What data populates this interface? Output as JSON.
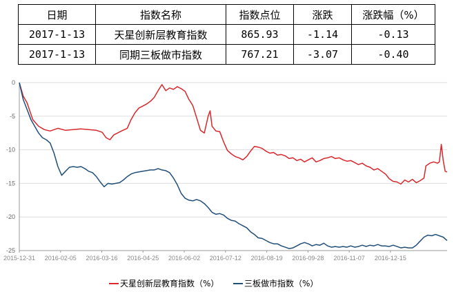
{
  "table": {
    "headers": [
      "日期",
      "指数名称",
      "指数点位",
      "涨跌",
      "涨跌幅（%）"
    ],
    "rows": [
      [
        "2017-1-13",
        "天星创新层教育指数",
        "865.93",
        "-1.14",
        "-0.13"
      ],
      [
        "2017-1-13",
        "同期三板做市指数",
        "767.21",
        "-3.07",
        "-0.40"
      ]
    ]
  },
  "chart_data": {
    "type": "line",
    "xlabel": "",
    "ylabel": "",
    "ylim": [
      -25,
      0
    ],
    "yticks": [
      0,
      -5,
      -10,
      -15,
      -20,
      -25
    ],
    "xticks": [
      "2015-12-31",
      "2016-02-05",
      "2016-03-16",
      "2016-04-25",
      "2016-06-02",
      "2016-07-12",
      "2016-08-19",
      "2016-09-28",
      "2016-11-07",
      "2016-12-15"
    ],
    "grid": "horizontal",
    "legend": "bottom",
    "colors": {
      "red": "#d9262b",
      "blue": "#1f4e79",
      "grid": "#dddddd",
      "axis": "#999999"
    },
    "series": [
      {
        "name": "天星创新层教育指数（%）",
        "color": "#d9262b",
        "points": [
          [
            0,
            0
          ],
          [
            2,
            -2
          ],
          [
            4,
            -3
          ],
          [
            7,
            -5.5
          ],
          [
            10,
            -6.5
          ],
          [
            13,
            -7
          ],
          [
            16,
            -7.2
          ],
          [
            20,
            -6.8
          ],
          [
            24,
            -7.1
          ],
          [
            28,
            -7
          ],
          [
            32,
            -6.9
          ],
          [
            36,
            -7
          ],
          [
            40,
            -7.1
          ],
          [
            43,
            -7.4
          ],
          [
            45,
            -8.2
          ],
          [
            47,
            -8.5
          ],
          [
            49,
            -7.8
          ],
          [
            51,
            -7.5
          ],
          [
            53,
            -7.2
          ],
          [
            56,
            -6.8
          ],
          [
            58,
            -5.5
          ],
          [
            60,
            -4.5
          ],
          [
            62,
            -3.8
          ],
          [
            64,
            -3.5
          ],
          [
            66,
            -3.2
          ],
          [
            68,
            -2.8
          ],
          [
            70,
            -2.2
          ],
          [
            72,
            -1.2
          ],
          [
            74,
            -0.3
          ],
          [
            76,
            -1.2
          ],
          [
            78,
            -0.8
          ],
          [
            80,
            -1.0
          ],
          [
            82,
            -0.6
          ],
          [
            84,
            -0.9
          ],
          [
            86,
            -1.3
          ],
          [
            88,
            -2.5
          ],
          [
            90,
            -3.4
          ],
          [
            92,
            -5.2
          ],
          [
            94,
            -7.1
          ],
          [
            96,
            -7.5
          ],
          [
            98,
            -5.0
          ],
          [
            99,
            -4.2
          ],
          [
            100,
            -6.5
          ],
          [
            102,
            -7.2
          ],
          [
            104,
            -7.3
          ],
          [
            106,
            -8.8
          ],
          [
            108,
            -10.1
          ],
          [
            110,
            -10.6
          ],
          [
            112,
            -11.0
          ],
          [
            114,
            -11.2
          ],
          [
            116,
            -11.5
          ],
          [
            118,
            -11.0
          ],
          [
            120,
            -10.2
          ],
          [
            122,
            -9.5
          ],
          [
            124,
            -9.6
          ],
          [
            126,
            -9.8
          ],
          [
            128,
            -10.2
          ],
          [
            130,
            -10.5
          ],
          [
            132,
            -10.4
          ],
          [
            134,
            -10.8
          ],
          [
            136,
            -10.7
          ],
          [
            138,
            -10.9
          ],
          [
            140,
            -11.3
          ],
          [
            142,
            -11.2
          ],
          [
            144,
            -11.6
          ],
          [
            146,
            -11.4
          ],
          [
            148,
            -11.8
          ],
          [
            150,
            -11.5
          ],
          [
            152,
            -11.2
          ],
          [
            154,
            -11.8
          ],
          [
            156,
            -11.6
          ],
          [
            158,
            -11.3
          ],
          [
            160,
            -11.2
          ],
          [
            162,
            -11.0
          ],
          [
            164,
            -11.3
          ],
          [
            166,
            -11.2
          ],
          [
            168,
            -11.5
          ],
          [
            170,
            -11.7
          ],
          [
            172,
            -11.6
          ],
          [
            174,
            -11.9
          ],
          [
            176,
            -12.2
          ],
          [
            178,
            -12.0
          ],
          [
            180,
            -12.4
          ],
          [
            182,
            -12.6
          ],
          [
            184,
            -13.0
          ],
          [
            186,
            -12.8
          ],
          [
            188,
            -13.2
          ],
          [
            190,
            -13.6
          ],
          [
            192,
            -14.3
          ],
          [
            194,
            -14.7
          ],
          [
            196,
            -14.8
          ],
          [
            198,
            -15.1
          ],
          [
            200,
            -14.5
          ],
          [
            202,
            -14.8
          ],
          [
            204,
            -14.4
          ],
          [
            206,
            -14.9
          ],
          [
            208,
            -14.6
          ],
          [
            210,
            -14.2
          ],
          [
            211,
            -12.4
          ],
          [
            213,
            -12.0
          ],
          [
            215,
            -11.8
          ],
          [
            217,
            -12.0
          ],
          [
            218,
            -11.8
          ],
          [
            219,
            -9.2
          ],
          [
            220,
            -11.6
          ],
          [
            221,
            -13.2
          ],
          [
            222,
            -13.3
          ]
        ]
      },
      {
        "name": "三板做市指数（%）",
        "color": "#1f4e79",
        "points": [
          [
            0,
            0
          ],
          [
            2,
            -2.5
          ],
          [
            4,
            -4
          ],
          [
            6,
            -5.5
          ],
          [
            8,
            -6.5
          ],
          [
            10,
            -7.5
          ],
          [
            12,
            -8.2
          ],
          [
            14,
            -8.5
          ],
          [
            16,
            -9
          ],
          [
            18,
            -10.5
          ],
          [
            20,
            -12.5
          ],
          [
            22,
            -13.8
          ],
          [
            24,
            -13.2
          ],
          [
            26,
            -12.6
          ],
          [
            28,
            -12.5
          ],
          [
            30,
            -12.6
          ],
          [
            32,
            -12.5
          ],
          [
            34,
            -12.8
          ],
          [
            36,
            -13.2
          ],
          [
            38,
            -13.4
          ],
          [
            40,
            -14.0
          ],
          [
            42,
            -14.8
          ],
          [
            44,
            -15.5
          ],
          [
            46,
            -15.0
          ],
          [
            48,
            -15.1
          ],
          [
            50,
            -15.0
          ],
          [
            52,
            -14.9
          ],
          [
            54,
            -14.5
          ],
          [
            56,
            -14.0
          ],
          [
            58,
            -13.6
          ],
          [
            60,
            -13.4
          ],
          [
            62,
            -13.3
          ],
          [
            64,
            -13.2
          ],
          [
            66,
            -13.1
          ],
          [
            68,
            -13.0
          ],
          [
            70,
            -13.0
          ],
          [
            72,
            -12.8
          ],
          [
            74,
            -13.0
          ],
          [
            76,
            -13.1
          ],
          [
            78,
            -13.4
          ],
          [
            80,
            -14.2
          ],
          [
            82,
            -15.2
          ],
          [
            84,
            -16.5
          ],
          [
            86,
            -17.2
          ],
          [
            88,
            -17.5
          ],
          [
            90,
            -17.6
          ],
          [
            92,
            -17.4
          ],
          [
            94,
            -17.6
          ],
          [
            96,
            -18.0
          ],
          [
            98,
            -18.6
          ],
          [
            100,
            -19.3
          ],
          [
            102,
            -19.6
          ],
          [
            104,
            -19.5
          ],
          [
            106,
            -19.7
          ],
          [
            108,
            -20.2
          ],
          [
            110,
            -20.5
          ],
          [
            112,
            -20.6
          ],
          [
            114,
            -21.0
          ],
          [
            116,
            -21.3
          ],
          [
            118,
            -21.6
          ],
          [
            120,
            -22.2
          ],
          [
            122,
            -22.6
          ],
          [
            124,
            -23.1
          ],
          [
            126,
            -23.2
          ],
          [
            128,
            -23.5
          ],
          [
            130,
            -23.8
          ],
          [
            132,
            -24.0
          ],
          [
            134,
            -24.0
          ],
          [
            136,
            -24.3
          ],
          [
            138,
            -24.5
          ],
          [
            140,
            -24.7
          ],
          [
            142,
            -24.6
          ],
          [
            144,
            -24.3
          ],
          [
            146,
            -24.0
          ],
          [
            148,
            -23.8
          ],
          [
            150,
            -24.0
          ],
          [
            152,
            -24.3
          ],
          [
            154,
            -24.1
          ],
          [
            156,
            -24.2
          ],
          [
            158,
            -23.9
          ],
          [
            160,
            -24.3
          ],
          [
            162,
            -24.5
          ],
          [
            164,
            -24.4
          ],
          [
            166,
            -24.5
          ],
          [
            168,
            -24.4
          ],
          [
            170,
            -24.5
          ],
          [
            172,
            -24.3
          ],
          [
            174,
            -24.5
          ],
          [
            176,
            -24.4
          ],
          [
            178,
            -24.2
          ],
          [
            180,
            -24.4
          ],
          [
            182,
            -24.2
          ],
          [
            184,
            -24.3
          ],
          [
            186,
            -24.1
          ],
          [
            188,
            -24.3
          ],
          [
            190,
            -24.3
          ],
          [
            192,
            -24.4
          ],
          [
            194,
            -24.2
          ],
          [
            196,
            -24.4
          ],
          [
            198,
            -24.6
          ],
          [
            200,
            -24.5
          ],
          [
            202,
            -24.6
          ],
          [
            204,
            -24.6
          ],
          [
            206,
            -24.2
          ],
          [
            208,
            -23.6
          ],
          [
            210,
            -23.0
          ],
          [
            212,
            -22.7
          ],
          [
            214,
            -22.8
          ],
          [
            216,
            -22.6
          ],
          [
            218,
            -22.8
          ],
          [
            220,
            -23.0
          ],
          [
            222,
            -23.5
          ]
        ]
      }
    ]
  }
}
